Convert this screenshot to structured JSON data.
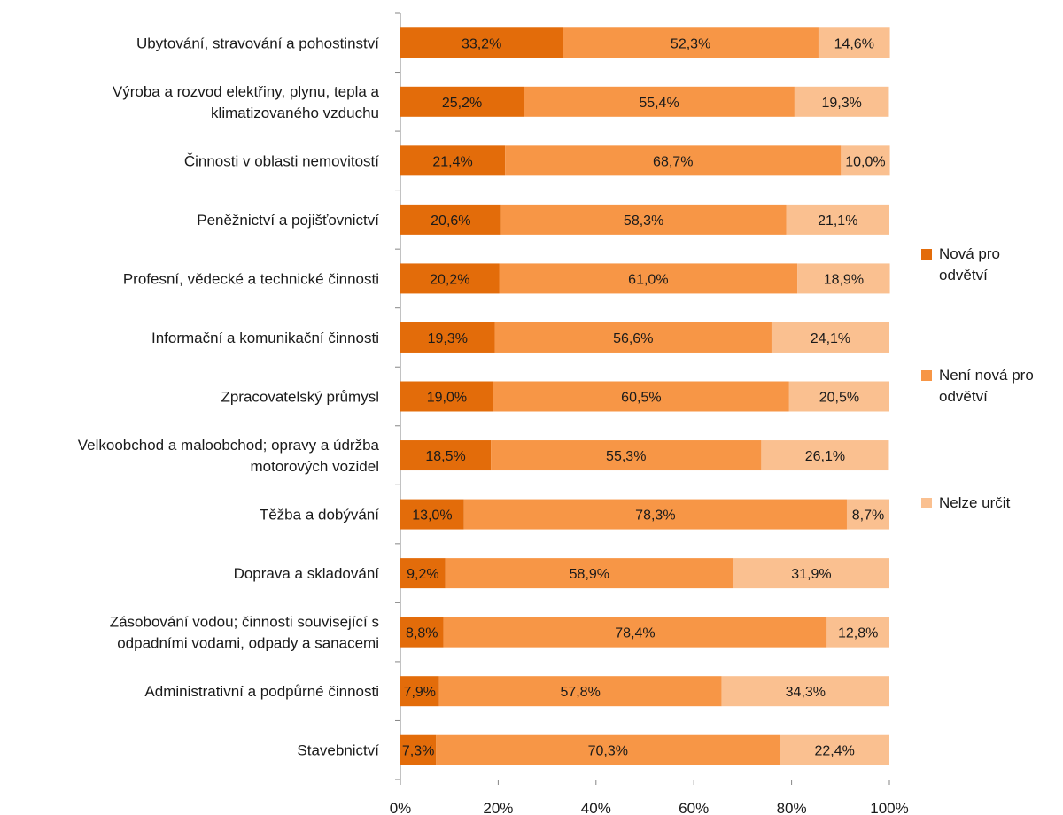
{
  "chart_data": {
    "type": "bar",
    "orientation": "horizontal",
    "stacked": "percent",
    "categories": [
      [
        "Ubytování, stravování a pohostinství"
      ],
      [
        "Výroba a rozvod elektřiny, plynu, tepla a",
        "klimatizovaného vzduchu"
      ],
      [
        "Činnosti v oblasti nemovitostí"
      ],
      [
        "Peněžnictví a pojišťovnictví"
      ],
      [
        "Profesní, vědecké a technické činnosti"
      ],
      [
        "Informační a komunikační činnosti"
      ],
      [
        "Zpracovatelský průmysl"
      ],
      [
        "Velkoobchod a maloobchod; opravy a údržba",
        "motorových vozidel"
      ],
      [
        "Těžba a dobývání"
      ],
      [
        "Doprava a skladování"
      ],
      [
        "Zásobování vodou; činnosti související s",
        "odpadními vodami, odpady a sanacemi"
      ],
      [
        "Administrativní a podpůrné činnosti"
      ],
      [
        "Stavebnictví"
      ]
    ],
    "series": [
      {
        "name": [
          "Nová pro",
          "odvětví"
        ],
        "color": "#e36c0a",
        "values": [
          33.2,
          25.2,
          21.4,
          20.6,
          20.2,
          19.3,
          19.0,
          18.5,
          13.0,
          9.2,
          8.8,
          7.9,
          7.3
        ],
        "labels": [
          "33,2%",
          "25,2%",
          "21,4%",
          "20,6%",
          "20,2%",
          "19,3%",
          "19,0%",
          "18,5%",
          "13,0%",
          "9,2%",
          "8,8%",
          "7,9%",
          "7,3%"
        ]
      },
      {
        "name": [
          "Není nová pro",
          "odvětví"
        ],
        "color": "#f79646",
        "values": [
          52.3,
          55.4,
          68.7,
          58.3,
          61.0,
          56.6,
          60.5,
          55.3,
          78.3,
          58.9,
          78.4,
          57.8,
          70.3
        ],
        "labels": [
          "52,3%",
          "55,4%",
          "68,7%",
          "58,3%",
          "61,0%",
          "56,6%",
          "60,5%",
          "55,3%",
          "78,3%",
          "58,9%",
          "78,4%",
          "57,8%",
          "70,3%"
        ]
      },
      {
        "name": [
          "Nelze určit"
        ],
        "color": "#fac090",
        "values": [
          14.6,
          19.3,
          10.0,
          21.1,
          18.9,
          24.1,
          20.5,
          26.1,
          8.7,
          31.9,
          12.8,
          34.3,
          22.4
        ],
        "labels": [
          "14,6%",
          "19,3%",
          "10,0%",
          "21,1%",
          "18,9%",
          "24,1%",
          "20,5%",
          "26,1%",
          "8,7%",
          "31,9%",
          "12,8%",
          "34,3%",
          "22,4%"
        ]
      }
    ],
    "xlim": [
      0,
      100
    ],
    "xticks": [
      "0%",
      "20%",
      "40%",
      "60%",
      "80%",
      "100%"
    ],
    "legend_position": "right",
    "grid": false
  }
}
